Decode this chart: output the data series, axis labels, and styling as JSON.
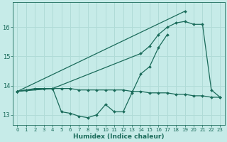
{
  "xlabel": "Humidex (Indice chaleur)",
  "bg_color": "#c6ebe8",
  "grid_color": "#b0dbd7",
  "line_color": "#1a6b5a",
  "xlim": [
    -0.5,
    23.5
  ],
  "ylim": [
    12.65,
    16.85
  ],
  "yticks": [
    13,
    14,
    15,
    16
  ],
  "xticks": [
    0,
    1,
    2,
    3,
    4,
    5,
    6,
    7,
    8,
    9,
    10,
    11,
    12,
    13,
    14,
    15,
    16,
    17,
    18,
    19,
    20,
    21,
    22,
    23
  ],
  "series": [
    [
      13.8,
      13.85,
      null,
      null,
      null,
      null,
      null,
      null,
      null,
      null,
      null,
      null,
      null,
      null,
      null,
      null,
      null,
      null,
      null,
      16.55,
      null,
      16.1,
      null,
      null
    ],
    [
      13.8,
      13.85,
      null,
      null,
      13.9,
      null,
      null,
      null,
      null,
      null,
      null,
      null,
      null,
      null,
      15.1,
      15.35,
      15.75,
      16.0,
      16.15,
      16.2,
      16.1,
      16.1,
      13.85,
      13.6
    ],
    [
      13.8,
      13.85,
      null,
      null,
      13.9,
      13.1,
      13.05,
      12.95,
      12.9,
      13.0,
      13.35,
      13.1,
      13.1,
      13.75,
      14.4,
      14.65,
      15.3,
      15.75,
      null,
      null,
      null,
      null,
      null,
      null
    ]
  ],
  "series2": {
    "line1": {
      "x": [
        0,
        19
      ],
      "y": [
        13.8,
        16.55
      ]
    },
    "line2": {
      "x": [
        0,
        4,
        14,
        15,
        16,
        17,
        18,
        19,
        20,
        21,
        22,
        23
      ],
      "y": [
        13.8,
        13.9,
        15.1,
        15.35,
        15.75,
        16.0,
        16.15,
        16.2,
        16.1,
        16.1,
        13.85,
        13.6
      ]
    },
    "line3": {
      "x": [
        0,
        1,
        4,
        5,
        6,
        7,
        8,
        9,
        10,
        11,
        12,
        13,
        14,
        15,
        16,
        17
      ],
      "y": [
        13.8,
        13.85,
        13.9,
        13.1,
        13.05,
        12.95,
        12.9,
        13.0,
        13.35,
        13.1,
        13.1,
        13.75,
        14.4,
        14.65,
        15.3,
        15.75
      ]
    },
    "line4": {
      "x": [
        0,
        1,
        2,
        3,
        4,
        5,
        6,
        7,
        8,
        9,
        10,
        11,
        12,
        13,
        14,
        15,
        16,
        17,
        18,
        19,
        20,
        21,
        22,
        23
      ],
      "y": [
        13.8,
        13.85,
        13.9,
        13.9,
        13.9,
        13.9,
        13.9,
        13.85,
        13.85,
        13.85,
        13.85,
        13.85,
        13.85,
        13.8,
        13.8,
        13.75,
        13.75,
        13.75,
        13.7,
        13.7,
        13.65,
        13.65,
        13.6,
        13.6
      ]
    }
  }
}
